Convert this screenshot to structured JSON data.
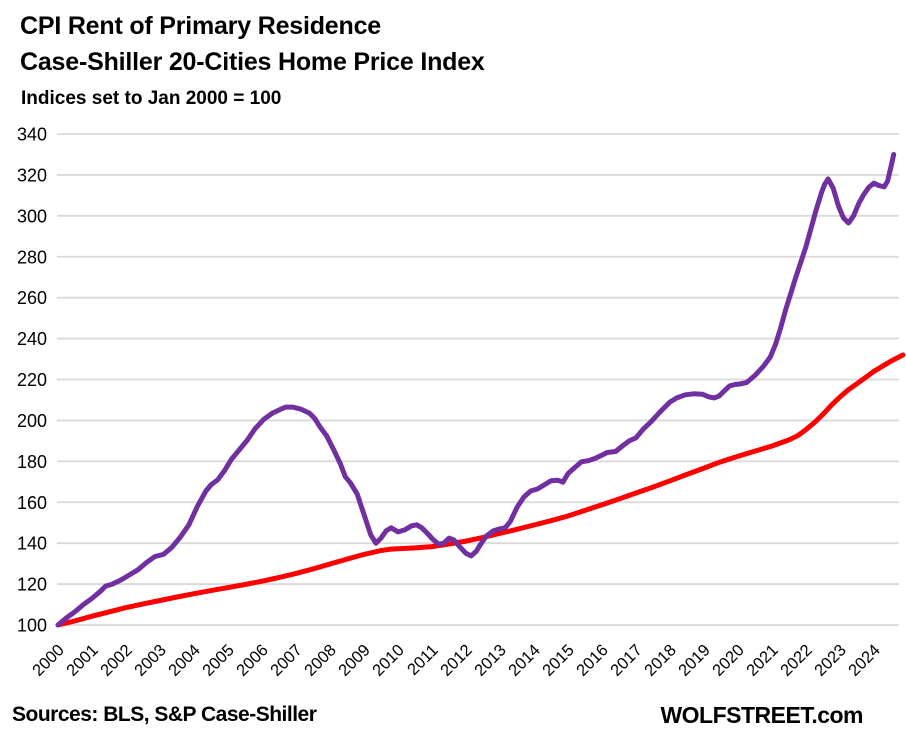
{
  "header": {
    "title_rent": "CPI Rent of Primary Residence",
    "title_caseshiller": "Case-Shiller 20-Cities Home Price Index",
    "subtitle": "Indices set to Jan 2000 = 100"
  },
  "footer": {
    "sources": "Sources: BLS, S&P Case-Shiller",
    "brand": "WOLFSTREET.com"
  },
  "colors": {
    "rent_line": "#FF0000",
    "case_shiller_line": "#7030A0",
    "gridline": "#D9D9D9",
    "axis_text": "#000000",
    "background": "#FFFFFF"
  },
  "chart_data": {
    "type": "line",
    "title": "CPI Rent of Primary Residence vs Case-Shiller 20-Cities Home Price Index",
    "subtitle": "Indices set to Jan 2000 = 100",
    "xlabel": "",
    "ylabel": "",
    "grid": "horizontal-only",
    "legend_position": "none (color-coded titles act as legend)",
    "x_axis": {
      "range": [
        2000,
        2025
      ],
      "ticks": [
        "2000",
        "2001",
        "2002",
        "2003",
        "2004",
        "2005",
        "2006",
        "2007",
        "2008",
        "2009",
        "2010",
        "2011",
        "2012",
        "2013",
        "2014",
        "2015",
        "2016",
        "2017",
        "2018",
        "2019",
        "2020",
        "2021",
        "2022",
        "2023",
        "2024"
      ],
      "tick_rotation_deg": -45
    },
    "y_axis": {
      "range": [
        100,
        340
      ],
      "ticks": [
        100,
        120,
        140,
        160,
        180,
        200,
        220,
        240,
        260,
        280,
        300,
        320,
        340
      ]
    },
    "series": [
      {
        "name": "CPI Rent of Primary Residence",
        "color": "#FF0000",
        "points": [
          [
            2000.0,
            100
          ],
          [
            2000.5,
            102
          ],
          [
            2001.0,
            104.3
          ],
          [
            2001.5,
            106.4
          ],
          [
            2002.0,
            108.5
          ],
          [
            2002.5,
            110.3
          ],
          [
            2003.0,
            112
          ],
          [
            2003.5,
            113.7
          ],
          [
            2004.0,
            115.3
          ],
          [
            2004.5,
            116.8
          ],
          [
            2005.0,
            118.3
          ],
          [
            2005.5,
            119.8
          ],
          [
            2006.0,
            121.4
          ],
          [
            2006.5,
            123.2
          ],
          [
            2007.0,
            125.2
          ],
          [
            2007.5,
            127.4
          ],
          [
            2008.0,
            129.8
          ],
          [
            2008.5,
            132.2
          ],
          [
            2009.0,
            134.5
          ],
          [
            2009.5,
            136.4
          ],
          [
            2009.75,
            137
          ],
          [
            2010.0,
            137.3
          ],
          [
            2010.5,
            137.7
          ],
          [
            2011.0,
            138.3
          ],
          [
            2011.5,
            139.6
          ],
          [
            2012.0,
            141
          ],
          [
            2012.5,
            142.8
          ],
          [
            2013.0,
            144.8
          ],
          [
            2013.5,
            146.8
          ],
          [
            2014.0,
            148.9
          ],
          [
            2014.5,
            151
          ],
          [
            2015.0,
            153.3
          ],
          [
            2015.5,
            156
          ],
          [
            2016.0,
            158.8
          ],
          [
            2016.5,
            161.6
          ],
          [
            2017.0,
            164.5
          ],
          [
            2017.5,
            167.4
          ],
          [
            2018.0,
            170.5
          ],
          [
            2018.5,
            173.6
          ],
          [
            2019.0,
            176.7
          ],
          [
            2019.5,
            179.8
          ],
          [
            2020.0,
            182.5
          ],
          [
            2020.5,
            185
          ],
          [
            2021.0,
            187.5
          ],
          [
            2021.5,
            190.5
          ],
          [
            2021.75,
            192.5
          ],
          [
            2022.0,
            195.5
          ],
          [
            2022.25,
            199
          ],
          [
            2022.5,
            203
          ],
          [
            2022.75,
            207.5
          ],
          [
            2023.0,
            211.5
          ],
          [
            2023.25,
            215
          ],
          [
            2023.5,
            218
          ],
          [
            2023.75,
            221
          ],
          [
            2024.0,
            224
          ],
          [
            2024.25,
            226.5
          ],
          [
            2024.5,
            229
          ],
          [
            2024.7,
            230.7
          ],
          [
            2024.85,
            232
          ]
        ]
      },
      {
        "name": "Case-Shiller 20-Cities Home Price Index",
        "color": "#7030A0",
        "points": [
          [
            2000.0,
            100
          ],
          [
            2000.25,
            103.5
          ],
          [
            2000.5,
            106.5
          ],
          [
            2000.75,
            110
          ],
          [
            2001.0,
            113
          ],
          [
            2001.25,
            116.5
          ],
          [
            2001.4,
            119
          ],
          [
            2001.6,
            120
          ],
          [
            2001.85,
            122
          ],
          [
            2002.1,
            124.5
          ],
          [
            2002.35,
            127
          ],
          [
            2002.6,
            130.5
          ],
          [
            2002.85,
            133.5
          ],
          [
            2003.1,
            134.5
          ],
          [
            2003.35,
            138
          ],
          [
            2003.6,
            143
          ],
          [
            2003.85,
            149
          ],
          [
            2004.1,
            158
          ],
          [
            2004.35,
            165.5
          ],
          [
            2004.5,
            168.5
          ],
          [
            2004.7,
            171
          ],
          [
            2004.9,
            175.5
          ],
          [
            2005.1,
            181
          ],
          [
            2005.3,
            185
          ],
          [
            2005.55,
            190
          ],
          [
            2005.8,
            196
          ],
          [
            2006.05,
            200.5
          ],
          [
            2006.3,
            203.5
          ],
          [
            2006.55,
            205.5
          ],
          [
            2006.7,
            206.5
          ],
          [
            2006.9,
            206.5
          ],
          [
            2007.15,
            205.5
          ],
          [
            2007.4,
            203.5
          ],
          [
            2007.55,
            201
          ],
          [
            2007.7,
            197
          ],
          [
            2007.9,
            192.5
          ],
          [
            2008.1,
            186
          ],
          [
            2008.3,
            179
          ],
          [
            2008.45,
            172.5
          ],
          [
            2008.6,
            169.5
          ],
          [
            2008.8,
            164
          ],
          [
            2009.0,
            154
          ],
          [
            2009.2,
            144
          ],
          [
            2009.35,
            140
          ],
          [
            2009.5,
            142.5
          ],
          [
            2009.65,
            146
          ],
          [
            2009.8,
            147.5
          ],
          [
            2010.0,
            145.5
          ],
          [
            2010.2,
            146.5
          ],
          [
            2010.4,
            148.5
          ],
          [
            2010.55,
            149
          ],
          [
            2010.7,
            147.5
          ],
          [
            2010.85,
            145
          ],
          [
            2011.05,
            141.5
          ],
          [
            2011.2,
            139.5
          ],
          [
            2011.35,
            140
          ],
          [
            2011.5,
            142.5
          ],
          [
            2011.65,
            141.5
          ],
          [
            2011.8,
            138.5
          ],
          [
            2012.0,
            135
          ],
          [
            2012.15,
            133.8
          ],
          [
            2012.3,
            136
          ],
          [
            2012.45,
            140
          ],
          [
            2012.6,
            143.5
          ],
          [
            2012.8,
            146
          ],
          [
            2013.0,
            147
          ],
          [
            2013.15,
            147.5
          ],
          [
            2013.3,
            150.5
          ],
          [
            2013.5,
            157.5
          ],
          [
            2013.7,
            162.5
          ],
          [
            2013.9,
            165.5
          ],
          [
            2014.1,
            166.5
          ],
          [
            2014.3,
            168.5
          ],
          [
            2014.5,
            170.5
          ],
          [
            2014.7,
            170.8
          ],
          [
            2014.85,
            169.8
          ],
          [
            2015.0,
            174
          ],
          [
            2015.2,
            177
          ],
          [
            2015.4,
            179.8
          ],
          [
            2015.6,
            180.3
          ],
          [
            2015.8,
            181.5
          ],
          [
            2016.0,
            183
          ],
          [
            2016.15,
            184.3
          ],
          [
            2016.4,
            184.8
          ],
          [
            2016.6,
            187.5
          ],
          [
            2016.8,
            190
          ],
          [
            2017.0,
            191.5
          ],
          [
            2017.2,
            195.5
          ],
          [
            2017.45,
            199.5
          ],
          [
            2017.7,
            204
          ],
          [
            2018.0,
            209
          ],
          [
            2018.2,
            211
          ],
          [
            2018.45,
            212.5
          ],
          [
            2018.7,
            213
          ],
          [
            2018.95,
            212.8
          ],
          [
            2019.15,
            211.5
          ],
          [
            2019.3,
            211
          ],
          [
            2019.45,
            212
          ],
          [
            2019.6,
            214.5
          ],
          [
            2019.75,
            216.8
          ],
          [
            2019.9,
            217.5
          ],
          [
            2020.05,
            217.8
          ],
          [
            2020.25,
            218.5
          ],
          [
            2020.5,
            222
          ],
          [
            2020.75,
            226.5
          ],
          [
            2020.95,
            231
          ],
          [
            2021.1,
            237
          ],
          [
            2021.25,
            245
          ],
          [
            2021.4,
            254
          ],
          [
            2021.55,
            262
          ],
          [
            2021.7,
            270
          ],
          [
            2021.85,
            277.5
          ],
          [
            2022.0,
            285
          ],
          [
            2022.15,
            294
          ],
          [
            2022.3,
            303
          ],
          [
            2022.45,
            311
          ],
          [
            2022.55,
            315.5
          ],
          [
            2022.65,
            318
          ],
          [
            2022.8,
            313.5
          ],
          [
            2022.95,
            305
          ],
          [
            2023.1,
            299
          ],
          [
            2023.25,
            296.5
          ],
          [
            2023.4,
            300
          ],
          [
            2023.55,
            306
          ],
          [
            2023.7,
            310.5
          ],
          [
            2023.85,
            314
          ],
          [
            2024.0,
            316
          ],
          [
            2024.15,
            314.8
          ],
          [
            2024.3,
            314.2
          ],
          [
            2024.4,
            317
          ],
          [
            2024.5,
            324
          ],
          [
            2024.58,
            330
          ]
        ]
      }
    ]
  }
}
